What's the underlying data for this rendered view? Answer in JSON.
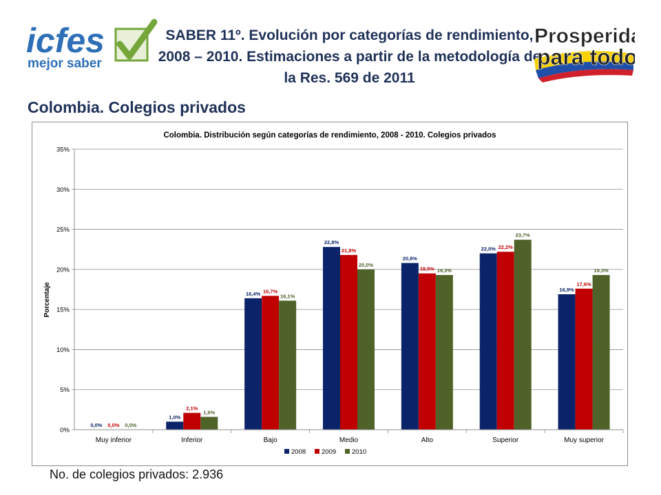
{
  "header": {
    "title": "SABER 11º. Evolución por categorías de rendimiento, 2008 – 2010. Estimaciones a partir de la metodología de la Res. 569 de 2011",
    "subtitle": "Colombia. Colegios privados"
  },
  "logos": {
    "icfes_text": "icfes",
    "icfes_tagline": "mejor saber",
    "prosperidad_line1": "Prosperidad",
    "prosperidad_line2": "para todos"
  },
  "footnote": "No. de colegios privados: 2.936",
  "colors": {
    "title": "#1f3158",
    "series_2008": "#0b2369",
    "series_2009": "#c00000",
    "series_2010": "#4f6228",
    "icfes_blue": "#2e6fb7",
    "check_green": "#74a63a"
  },
  "chart_data": {
    "type": "bar",
    "title": "Colombia. Distribución según categorías de rendimiento, 2008 - 2010. Colegios privados",
    "ylabel": "Porcentaje",
    "xlabel": "",
    "ylim": [
      0,
      35
    ],
    "yticks": [
      0,
      5,
      10,
      15,
      20,
      25,
      30,
      35
    ],
    "ytick_labels": [
      "0%",
      "5%",
      "10%",
      "15%",
      "20%",
      "25%",
      "30%",
      "35%"
    ],
    "grid": true,
    "legend_position": "bottom",
    "categories": [
      "Muy inferior",
      "Inferior",
      "Bajo",
      "Medio",
      "Alto",
      "Superior",
      "Muy superior"
    ],
    "series": [
      {
        "name": "2008",
        "color": "#0b2369",
        "values": [
          0.0,
          1.0,
          16.4,
          22.8,
          20.8,
          22.0,
          16.9
        ],
        "labels": [
          "0,0%",
          "1,0%",
          "16,4%",
          "22,8%",
          "20,8%",
          "22,0%",
          "16,9%"
        ]
      },
      {
        "name": "2009",
        "color": "#c00000",
        "values": [
          0.0,
          2.1,
          16.7,
          21.8,
          19.5,
          22.2,
          17.6
        ],
        "labels": [
          "0,0%",
          "2,1%",
          "16,7%",
          "21,8%",
          "19,5%",
          "22,2%",
          "17,6%"
        ]
      },
      {
        "name": "2010",
        "color": "#4f6228",
        "values": [
          0.0,
          1.6,
          16.1,
          20.0,
          19.3,
          23.7,
          19.3
        ],
        "labels": [
          "0,0%",
          "1,6%",
          "16,1%",
          "20,0%",
          "19,3%",
          "23,7%",
          "19,3%"
        ]
      }
    ]
  }
}
